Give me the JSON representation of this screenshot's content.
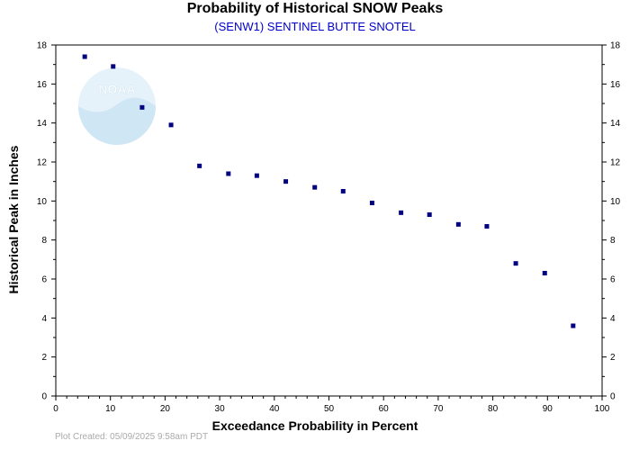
{
  "chart_data": {
    "type": "scatter",
    "title": "Probability of Historical SNOW Peaks",
    "subtitle": "(SENW1) SENTINEL BUTTE SNOTEL",
    "xlabel": "Exceedance Probability in Percent",
    "ylabel": "Historical Peak in Inches",
    "xlim": [
      0,
      100
    ],
    "ylim": [
      0,
      18
    ],
    "xticks": [
      0,
      10,
      20,
      30,
      40,
      50,
      60,
      70,
      80,
      90,
      100
    ],
    "yticks": [
      0,
      2,
      4,
      6,
      8,
      10,
      12,
      14,
      16,
      18
    ],
    "grid": false,
    "series": [
      {
        "color": "#000080",
        "points": [
          {
            "x": 5.3,
            "y": 17.4
          },
          {
            "x": 10.5,
            "y": 16.9
          },
          {
            "x": 15.8,
            "y": 14.8
          },
          {
            "x": 21.1,
            "y": 13.9
          },
          {
            "x": 26.3,
            "y": 11.8
          },
          {
            "x": 31.6,
            "y": 11.4
          },
          {
            "x": 36.8,
            "y": 11.3
          },
          {
            "x": 42.1,
            "y": 11.0
          },
          {
            "x": 47.4,
            "y": 10.7
          },
          {
            "x": 52.6,
            "y": 10.5
          },
          {
            "x": 57.9,
            "y": 9.9
          },
          {
            "x": 63.2,
            "y": 9.4
          },
          {
            "x": 68.4,
            "y": 9.3
          },
          {
            "x": 73.7,
            "y": 8.8
          },
          {
            "x": 78.9,
            "y": 8.7
          },
          {
            "x": 84.2,
            "y": 6.8
          },
          {
            "x": 89.5,
            "y": 6.3
          },
          {
            "x": 94.7,
            "y": 3.6
          }
        ]
      }
    ]
  },
  "footer": "Plot Created: 05/09/2025 9:58am PDT",
  "logo_text": "NOAA"
}
